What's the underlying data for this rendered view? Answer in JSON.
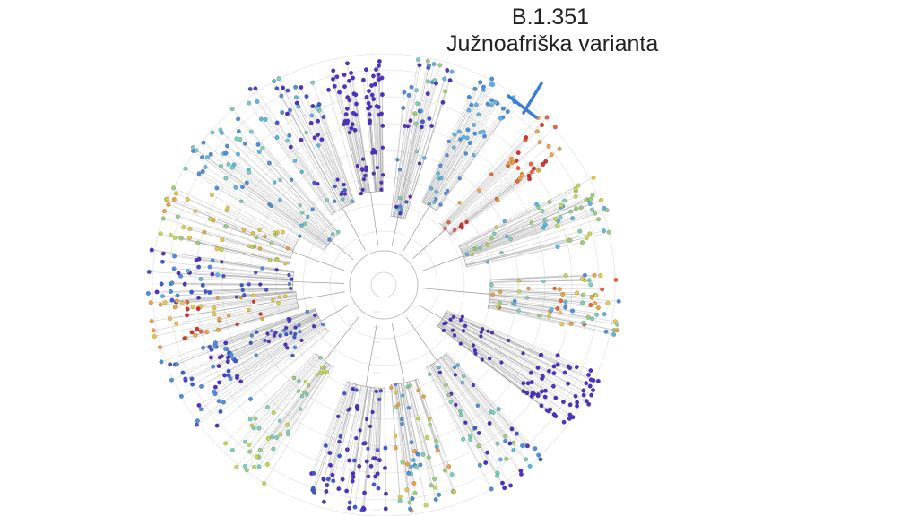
{
  "annotation": {
    "line1": "B.1.351",
    "line2": "Južnoafriška varianta",
    "marker_color": "#3B7DDD"
  },
  "tree": {
    "type": "radial-phylogenetic-tree",
    "branch_color": "#9a9a9a",
    "palette": [
      "#4B2FC9",
      "#5530C8",
      "#3F58D6",
      "#4C8FE0",
      "#5BB6E8",
      "#7ACFC0",
      "#9BD07A",
      "#C9D94E",
      "#E8C843",
      "#F0A23C",
      "#E8643A",
      "#D9312E"
    ]
  }
}
